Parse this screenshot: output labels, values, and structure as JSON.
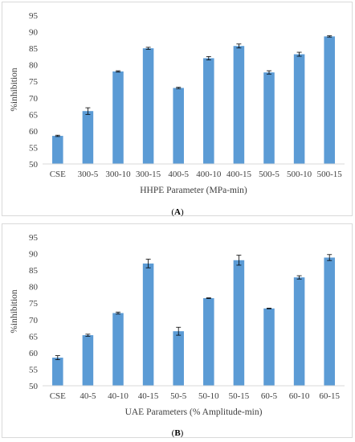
{
  "chart_data": [
    {
      "type": "bar",
      "title": "",
      "xlabel": "HHPE Parameter (MPa-min)",
      "ylabel": "%inhibition",
      "ylim": [
        50,
        95
      ],
      "yticks": [
        50,
        55,
        60,
        65,
        70,
        75,
        80,
        85,
        90,
        95
      ],
      "categories": [
        "CSE",
        "300-5",
        "300-10",
        "300-15",
        "400-5",
        "400-10",
        "400-15",
        "500-5",
        "500-10",
        "500-15"
      ],
      "values": [
        58.5,
        66.0,
        78.0,
        85.0,
        73.0,
        82.0,
        85.7,
        77.7,
        83.2,
        88.6
      ],
      "errors": [
        0.2,
        1.0,
        0.2,
        0.3,
        0.2,
        0.5,
        0.6,
        0.5,
        0.6,
        0.2
      ],
      "grid": false,
      "bar_color": "#5b9bd5"
    },
    {
      "type": "bar",
      "title": "",
      "xlabel": "UAE Parameters (% Amplitude-min)",
      "ylabel": "%inhibition",
      "ylim": [
        50,
        95
      ],
      "yticks": [
        50,
        55,
        60,
        65,
        70,
        75,
        80,
        85,
        90,
        95
      ],
      "categories": [
        "CSE",
        "40-5",
        "40-10",
        "40-15",
        "50-5",
        "50-10",
        "50-15",
        "60-5",
        "60-10",
        "60-15"
      ],
      "values": [
        58.5,
        65.3,
        72.0,
        87.0,
        66.5,
        76.5,
        88.0,
        73.4,
        82.8,
        88.8
      ],
      "errors": [
        0.6,
        0.3,
        0.3,
        1.3,
        1.2,
        0.1,
        1.5,
        0.1,
        0.5,
        0.9
      ],
      "grid": false,
      "bar_color": "#5b9bd5"
    }
  ],
  "captions": {
    "a": "A",
    "b": "B"
  }
}
